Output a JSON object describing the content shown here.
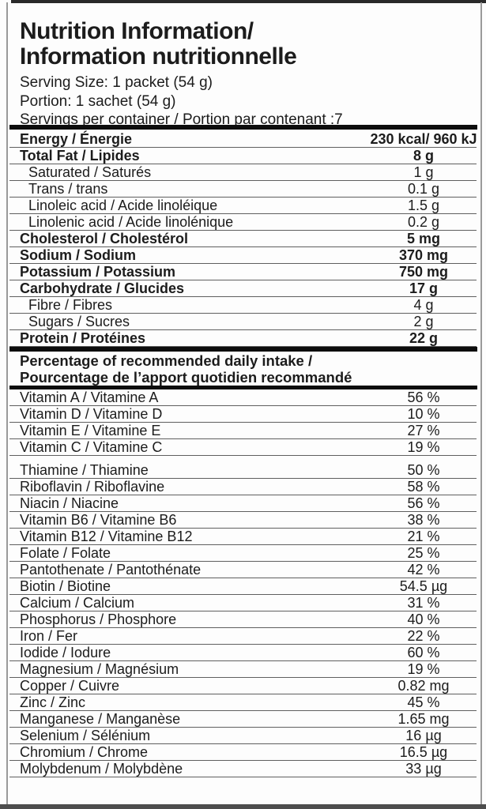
{
  "label": {
    "title_line1": "Nutrition Information/",
    "title_line2": "Information nutritionnelle",
    "serving_lines": [
      "Serving Size: 1 packet (54 g)",
      "Portion: 1 sachet (54 g)",
      "Servings per container / Portion par contenant :7"
    ],
    "section_header_line1": "Percentage of recommended daily intake /",
    "section_header_line2": "Pourcentage de l’apport quotidien recommandé"
  },
  "main_table": {
    "rows": [
      {
        "label": "Energy / Énergie",
        "value": "230 kcal/ 960 kJ",
        "style": "bold"
      },
      {
        "label": "Total Fat / Lipides",
        "value": "8 g",
        "style": "bold"
      },
      {
        "label": "Saturated / Saturés",
        "value": "1 g",
        "style": "indent"
      },
      {
        "label": "Trans / trans",
        "value": "0.1 g",
        "style": "indent"
      },
      {
        "label": "Linoleic acid / Acide linoléique",
        "value": "1.5 g",
        "style": "indent"
      },
      {
        "label": "Linolenic acid / Acide linolénique",
        "value": "0.2 g",
        "style": "indent"
      },
      {
        "label": "Cholesterol / Cholestérol",
        "value": "5 mg",
        "style": "bold"
      },
      {
        "label": "Sodium / Sodium",
        "value": "370 mg",
        "style": "bold"
      },
      {
        "label": "Potassium / Potassium",
        "value": "750 mg",
        "style": "bold"
      },
      {
        "label": "Carbohydrate / Glucides",
        "value": "17 g",
        "style": "bold"
      },
      {
        "label": "Fibre / Fibres",
        "value": "4 g",
        "style": "indent"
      },
      {
        "label": "Sugars / Sucres",
        "value": "2 g",
        "style": "indent"
      },
      {
        "label": "Protein / Protéines",
        "value": "22 g",
        "style": "bold"
      }
    ]
  },
  "dri_table": {
    "rows": [
      {
        "label": "Vitamin A / Vitamine A",
        "value": "56 %",
        "style": ""
      },
      {
        "label": "Vitamin D / Vitamine D",
        "value": "10 %",
        "style": ""
      },
      {
        "label": "Vitamin E / Vitamine E",
        "value": "27 %",
        "style": ""
      },
      {
        "label": "Vitamin C / Vitamine C",
        "value": "19 %",
        "style": ""
      },
      {
        "label": "Thiamine / Thiamine",
        "value": "50 %",
        "style": "gap-above"
      },
      {
        "label": "Riboflavin / Riboflavine",
        "value": "58 %",
        "style": ""
      },
      {
        "label": "Niacin / Niacine",
        "value": "56 %",
        "style": ""
      },
      {
        "label": "Vitamin B6 / Vitamine B6",
        "value": "38 %",
        "style": ""
      },
      {
        "label": "Vitamin B12 / Vitamine B12",
        "value": "21 %",
        "style": ""
      },
      {
        "label": "Folate / Folate",
        "value": "25 %",
        "style": ""
      },
      {
        "label": "Pantothenate / Pantothénate",
        "value": "42 %",
        "style": ""
      },
      {
        "label": "Biotin / Biotine",
        "value": "54.5 µg",
        "style": ""
      },
      {
        "label": "Calcium / Calcium",
        "value": "31 %",
        "style": ""
      },
      {
        "label": "Phosphorus / Phosphore",
        "value": "40 %",
        "style": ""
      },
      {
        "label": "Iron / Fer",
        "value": "22 %",
        "style": ""
      },
      {
        "label": "Iodide / Iodure",
        "value": "60 %",
        "style": ""
      },
      {
        "label": "Magnesium / Magnésium",
        "value": "19 %",
        "style": ""
      },
      {
        "label": "Copper / Cuivre",
        "value": "0.82 mg",
        "style": ""
      },
      {
        "label": "Zinc / Zinc",
        "value": "45 %",
        "style": ""
      },
      {
        "label": "Manganese / Manganèse",
        "value": "1.65 mg",
        "style": ""
      },
      {
        "label": "Selenium / Sélénium",
        "value": "16 µg",
        "style": ""
      },
      {
        "label": "Chromium / Chrome",
        "value": "16.5 µg",
        "style": ""
      },
      {
        "label": "Molybdenum / Molybdène",
        "value": "33 µg",
        "style": ""
      }
    ]
  },
  "colors": {
    "text": "#1c1c1c",
    "divider": "#5f5f5f",
    "thick_bar": "#0d0d0d",
    "frame_edge": "#9a9a9a",
    "bottom_edge": "#4d4d4d",
    "background": "#fdfdfd"
  }
}
